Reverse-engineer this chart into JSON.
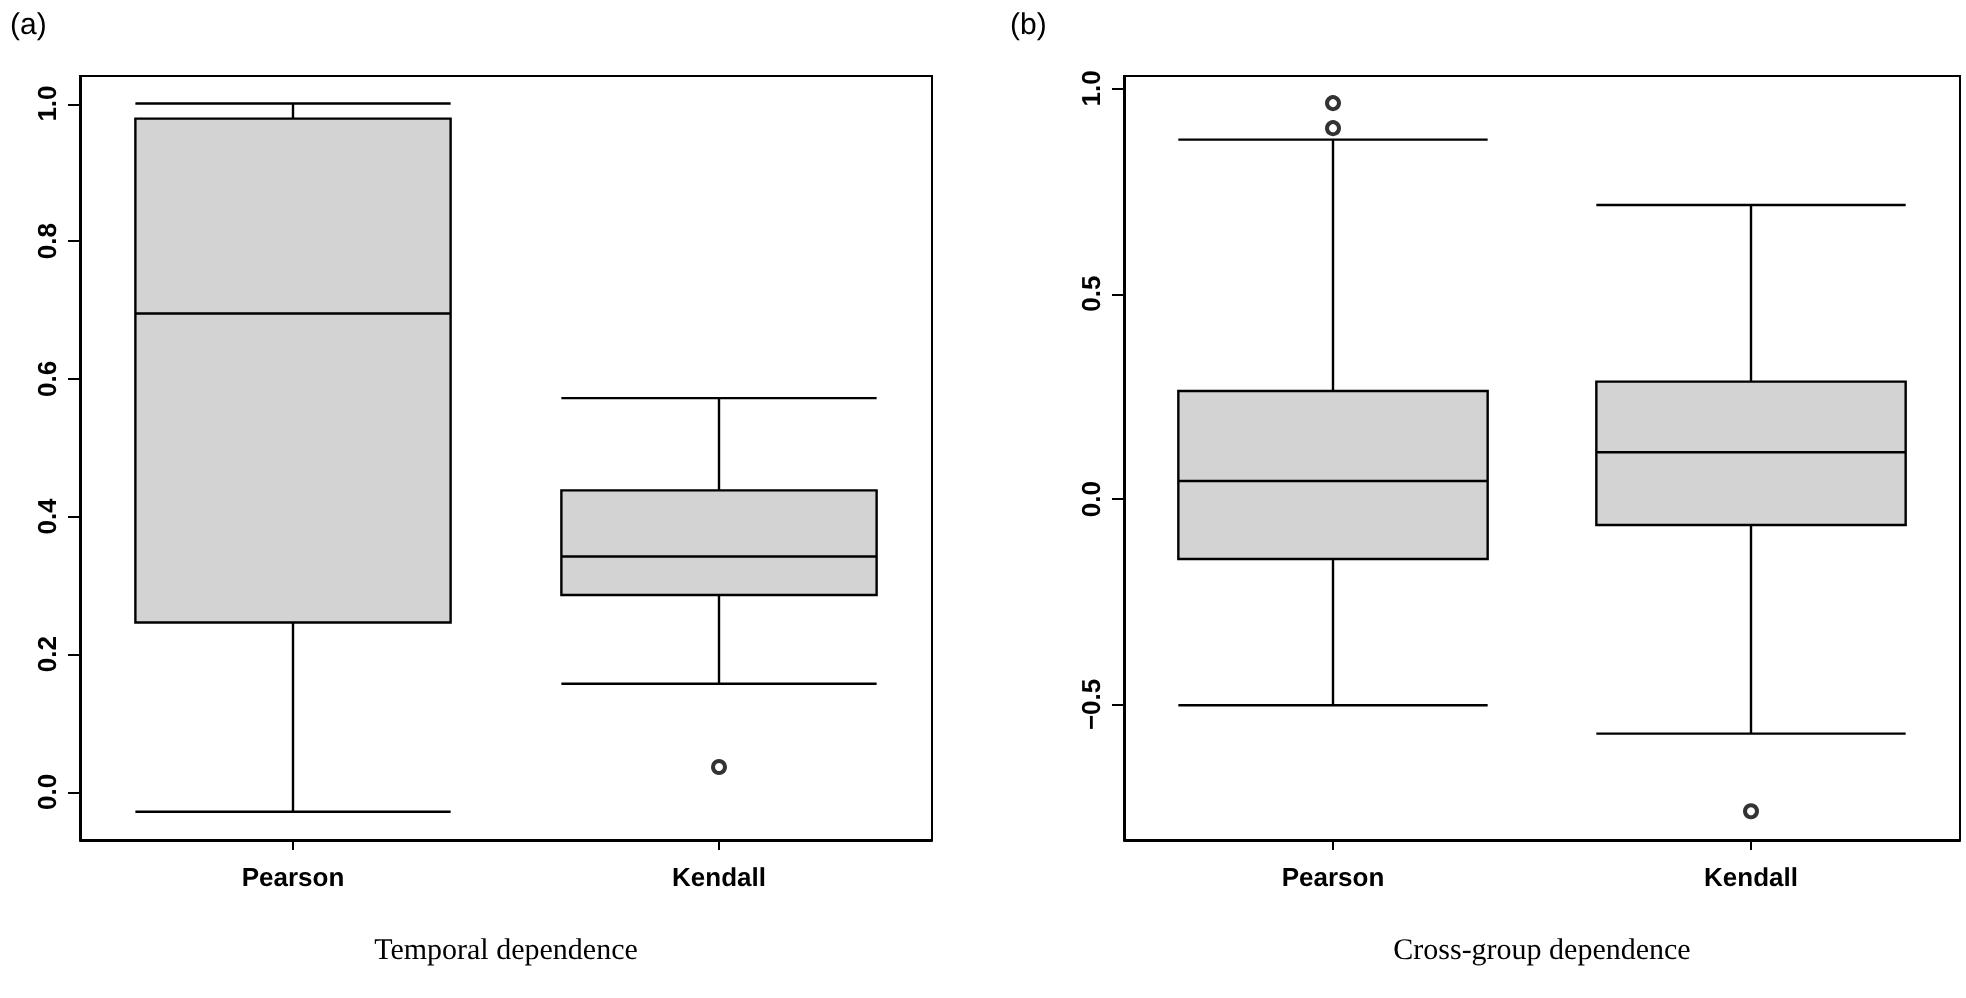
{
  "chart_data": [
    {
      "type": "box",
      "title": "(a)",
      "xlabel": "Temporal dependence",
      "categories": [
        "Pearson",
        "Kendall"
      ],
      "series": [
        {
          "color": "#d3d3d3",
          "boxes": [
            {
              "low": -0.029,
              "q1": 0.246,
              "median": 0.695,
              "q3": 0.978,
              "high": 1.0
            },
            {
              "low": 0.157,
              "q1": 0.286,
              "median": 0.342,
              "q3": 0.438,
              "high": 0.572,
              "outliers": [
                0.036
              ]
            }
          ]
        }
      ],
      "ylim": [
        -0.07,
        1.04
      ],
      "yticks": [
        {
          "value": 0,
          "label": "0.0"
        },
        {
          "value": 0.2,
          "label": "0.2"
        },
        {
          "value": 0.4,
          "label": "0.4"
        },
        {
          "value": 0.6,
          "label": "0.6"
        },
        {
          "value": 0.8,
          "label": "0.8"
        },
        {
          "value": 1,
          "label": "1.0"
        }
      ]
    },
    {
      "type": "box",
      "title": "(b)",
      "xlabel": "Cross-group dependence",
      "categories": [
        "Pearson",
        "Kendall"
      ],
      "series": [
        {
          "color": "#d3d3d3",
          "boxes": [
            {
              "low": -0.502,
              "q1": -0.146,
              "median": 0.044,
              "q3": 0.263,
              "high": 0.875,
              "outliers": [
                0.964,
                0.903
              ]
            },
            {
              "low": -0.571,
              "q1": -0.063,
              "median": 0.114,
              "q3": 0.286,
              "high": 0.716,
              "outliers": [
                -0.76
              ]
            }
          ]
        }
      ],
      "ylim": [
        -0.83,
        1.03
      ],
      "yticks": [
        {
          "value": -0.5,
          "label": "−0.5"
        },
        {
          "value": 0,
          "label": "0.0"
        },
        {
          "value": 0.5,
          "label": "0.5"
        },
        {
          "value": 1,
          "label": "1.0"
        }
      ]
    }
  ]
}
